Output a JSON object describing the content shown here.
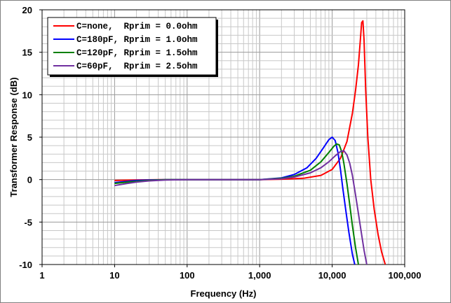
{
  "chart_data": {
    "type": "line",
    "xlabel": "Frequency (Hz)",
    "ylabel": "Transformer  Response (dB)",
    "xscale": "log",
    "xlim": [
      1,
      100000
    ],
    "ylim": [
      -10,
      20
    ],
    "x_tick_values": [
      1,
      10,
      100,
      1000,
      10000,
      100000
    ],
    "x_tick_labels": [
      "1",
      "10",
      "100",
      "1,000",
      "10,000",
      "100,000"
    ],
    "y_tick_values": [
      -10,
      -5,
      0,
      5,
      10,
      15,
      20
    ],
    "y_tick_labels": [
      "-10",
      "-5",
      "0",
      "5",
      "10",
      "15",
      "20"
    ],
    "grid": true,
    "legend_position": "top-left",
    "series": [
      {
        "name": "C=none,  Rprim = 0.0ohm",
        "color": "#ff0000",
        "x": [
          10,
          20,
          40,
          100,
          300,
          1000,
          2000,
          4000,
          7000,
          10000,
          13000,
          16000,
          19000,
          21000,
          23000,
          24500,
          25500,
          26500,
          27500,
          29000,
          31000,
          34000,
          38000,
          43000,
          48000,
          54000
        ],
        "y": [
          -0.1,
          -0.05,
          0,
          0,
          0,
          0,
          0.05,
          0.15,
          0.5,
          1.2,
          2.5,
          4.5,
          7.8,
          10.5,
          13.5,
          16.5,
          18.5,
          18.7,
          16.5,
          10.5,
          5,
          0,
          -3.5,
          -6.5,
          -8.5,
          -10
        ]
      },
      {
        "name": "C=180pF, Rprim = 1.0ohm",
        "color": "#0000ff",
        "x": [
          10,
          15,
          20,
          30,
          50,
          100,
          300,
          1000,
          2000,
          3000,
          4500,
          6000,
          7500,
          9000,
          10000,
          11000,
          12000,
          13000,
          14000,
          15500,
          17000,
          19000,
          20500
        ],
        "y": [
          -0.35,
          -0.2,
          -0.1,
          -0.05,
          0,
          0,
          0,
          0,
          0.2,
          0.6,
          1.4,
          2.5,
          3.7,
          4.7,
          5.0,
          4.6,
          3.2,
          1.2,
          -1.0,
          -3.8,
          -6.2,
          -8.8,
          -10
        ]
      },
      {
        "name": "C=120pF, Rprim = 1.5ohm",
        "color": "#008000",
        "x": [
          10,
          15,
          20,
          30,
          50,
          100,
          300,
          1000,
          2000,
          3000,
          5000,
          7000,
          9000,
          10500,
          11500,
          12500,
          13500,
          14500,
          16000,
          17500,
          19000,
          21000,
          23000
        ],
        "y": [
          -0.45,
          -0.3,
          -0.2,
          -0.1,
          0,
          0,
          0,
          0,
          0.15,
          0.4,
          1.1,
          2.1,
          3.2,
          3.9,
          4.2,
          4.1,
          3.3,
          1.9,
          -0.5,
          -3.0,
          -5.4,
          -8.0,
          -10
        ]
      },
      {
        "name": "C=60pF,  Rprim = 2.5ohm",
        "color": "#7030a0",
        "x": [
          10,
          15,
          20,
          30,
          50,
          100,
          300,
          1000,
          2000,
          3000,
          5000,
          7000,
          9000,
          11000,
          13000,
          14500,
          16000,
          17500,
          19000,
          21000,
          23000,
          25000,
          27500,
          30000
        ],
        "y": [
          -0.7,
          -0.45,
          -0.3,
          -0.15,
          -0.05,
          0,
          0,
          0,
          0.1,
          0.3,
          0.8,
          1.4,
          2.1,
          2.8,
          3.3,
          3.4,
          2.9,
          1.9,
          0.5,
          -1.8,
          -4.0,
          -6.0,
          -8.3,
          -10
        ]
      }
    ]
  }
}
